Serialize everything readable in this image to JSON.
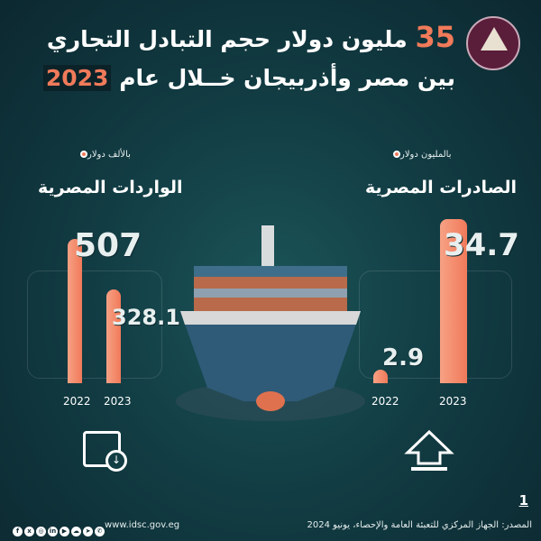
{
  "header": {
    "line1_number": "35",
    "line1_text": "مليون دولار حجم التبادل التجاري",
    "line2_text": "بين مصر وأذربيجان خــلال عام",
    "line2_year": "2023"
  },
  "logo": {
    "text": "مجلس الوزراء المصري - مركز المعلومات ودعم اتخاذ القرار"
  },
  "colors": {
    "accent": "#f07a5a",
    "background": "#123d44"
  },
  "chart_data": [
    {
      "type": "bar",
      "title": "الواردات المصرية",
      "ylabel": "بالألف دولار",
      "categories": [
        "2022",
        "2023"
      ],
      "values": [
        507,
        328.1
      ],
      "value_labels": [
        "507",
        "328.1"
      ]
    },
    {
      "type": "bar",
      "title": "الصادرات المصرية",
      "ylabel": "بالمليون دولار",
      "categories": [
        "2022",
        "2023"
      ],
      "values": [
        2.9,
        34.7
      ],
      "value_labels": [
        "2.9",
        "34.7"
      ]
    }
  ],
  "footer": {
    "page": "1",
    "source": "المصدر: الجهاز المركزي للتعبئة العامة والإحصاء، يونيو 2024",
    "website": "www.idsc.gov.eg",
    "social_icons": [
      "facebook",
      "x",
      "instagram",
      "linkedin",
      "youtube",
      "soundcloud",
      "telegram",
      "whatsapp"
    ]
  }
}
